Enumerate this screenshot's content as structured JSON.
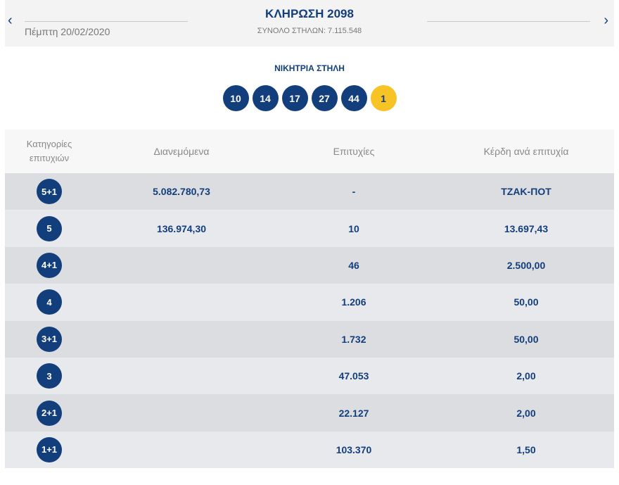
{
  "header": {
    "title": "ΚΛΗΡΩΣΗ 2098",
    "date": "Πέμπτη 20/02/2020",
    "total": "ΣΥΝΟΛΟ ΣΤΗΛΩΝ: 7.115.548",
    "prev_icon": "chevron-left-icon",
    "next_icon": "chevron-right-icon"
  },
  "winning": {
    "title": "ΝΙΚΗΤΡΙΑ ΣΤΗΛΗ",
    "numbers": [
      "10",
      "14",
      "17",
      "27",
      "44"
    ],
    "joker": "1",
    "colors": {
      "number": "#123e7c",
      "joker": "#f7c325"
    }
  },
  "table": {
    "headers": [
      "Κατηγορίες επιτυχιών",
      "Διανεμόμενα",
      "Επιτυχίες",
      "Κέρδη ανά επιτυχία"
    ],
    "rows": [
      {
        "cat": "5+1",
        "dist": "5.082.780,73",
        "wins": "-",
        "prize": "ΤΖΑΚ-ΠΟΤ"
      },
      {
        "cat": "5",
        "dist": "136.974,30",
        "wins": "10",
        "prize": "13.697,43"
      },
      {
        "cat": "4+1",
        "dist": "",
        "wins": "46",
        "prize": "2.500,00"
      },
      {
        "cat": "4",
        "dist": "",
        "wins": "1.206",
        "prize": "50,00"
      },
      {
        "cat": "3+1",
        "dist": "",
        "wins": "1.732",
        "prize": "50,00"
      },
      {
        "cat": "3",
        "dist": "",
        "wins": "47.053",
        "prize": "2,00"
      },
      {
        "cat": "2+1",
        "dist": "",
        "wins": "22.127",
        "prize": "2,00"
      },
      {
        "cat": "1+1",
        "dist": "",
        "wins": "103.370",
        "prize": "1,50"
      }
    ]
  }
}
